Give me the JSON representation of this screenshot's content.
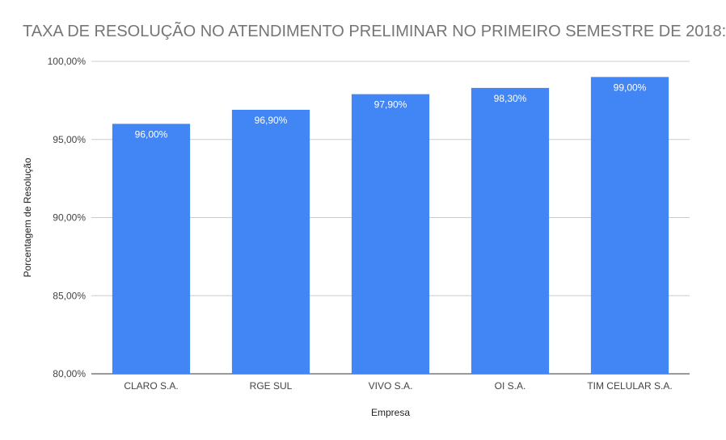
{
  "chart_data": {
    "type": "bar",
    "title": "TAXA DE RESOLUÇÃO NO ATENDIMENTO PRELIMINAR NO PRIMEIRO SEMESTRE DE 2018:",
    "xlabel": "Empresa",
    "ylabel": "Porcentagem de Resolução",
    "categories": [
      "CLARO S.A.",
      "RGE SUL",
      "VIVO S.A.",
      "OI S.A.",
      "TIM CELULAR S.A."
    ],
    "values": [
      96.0,
      96.9,
      97.9,
      98.3,
      99.0
    ],
    "value_labels": [
      "96,00%",
      "96,90%",
      "97,90%",
      "98,30%",
      "99,00%"
    ],
    "ylim": [
      80,
      100
    ],
    "yticks": [
      80,
      85,
      90,
      95,
      100
    ],
    "ytick_labels": [
      "80,00%",
      "85,00%",
      "90,00%",
      "95,00%",
      "100,00%"
    ],
    "grid": true,
    "legend": "none",
    "bar_color": "#4285F4"
  }
}
